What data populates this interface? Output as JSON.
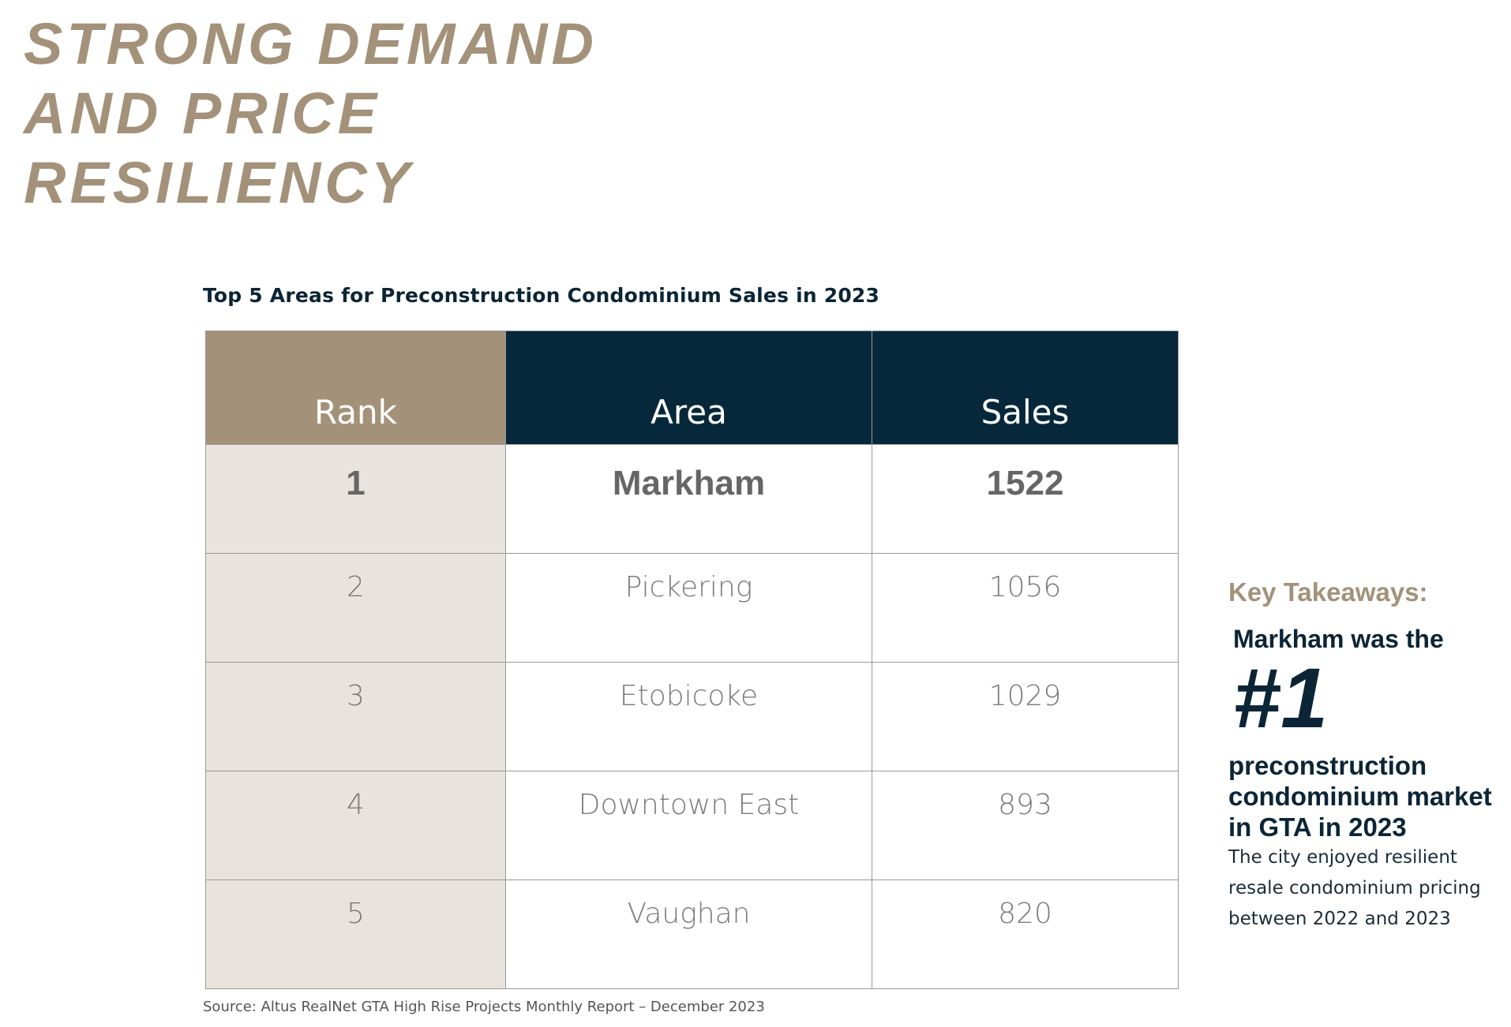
{
  "headline": {
    "lines": [
      "STRONG DEMAND",
      "AND PRICE",
      "RESILIENCY"
    ]
  },
  "table": {
    "title": "Top 5 Areas for Preconstruction Condominium Sales in 2023",
    "headers": {
      "rank": "Rank",
      "area": "Area",
      "sales": "Sales"
    },
    "rows": [
      {
        "rank": "1",
        "area": "Markham",
        "sales": "1522"
      },
      {
        "rank": "2",
        "area": "Pickering",
        "sales": "1056"
      },
      {
        "rank": "3",
        "area": "Etobicoke",
        "sales": "1029"
      },
      {
        "rank": "4",
        "area": "Downtown East",
        "sales": "893"
      },
      {
        "rank": "5",
        "area": "Vaughan",
        "sales": "820"
      }
    ],
    "source": "Source: Altus RealNet GTA High Rise Projects Monthly Report –   December 2023"
  },
  "takeaways": {
    "heading": "Key Takeaways:",
    "lead": "Markham was the",
    "big": "#1",
    "sub_lines": [
      "preconstruction",
      "condominium market",
      "in GTA in 2023"
    ],
    "body_lines": [
      "The city enjoyed resilient",
      "resale condominium pricing",
      "between 2022 and 2023"
    ]
  },
  "colors": {
    "accent_tan": "#a39279",
    "navy": "#06283a",
    "rank_column_bg": "#e8e3dc"
  }
}
